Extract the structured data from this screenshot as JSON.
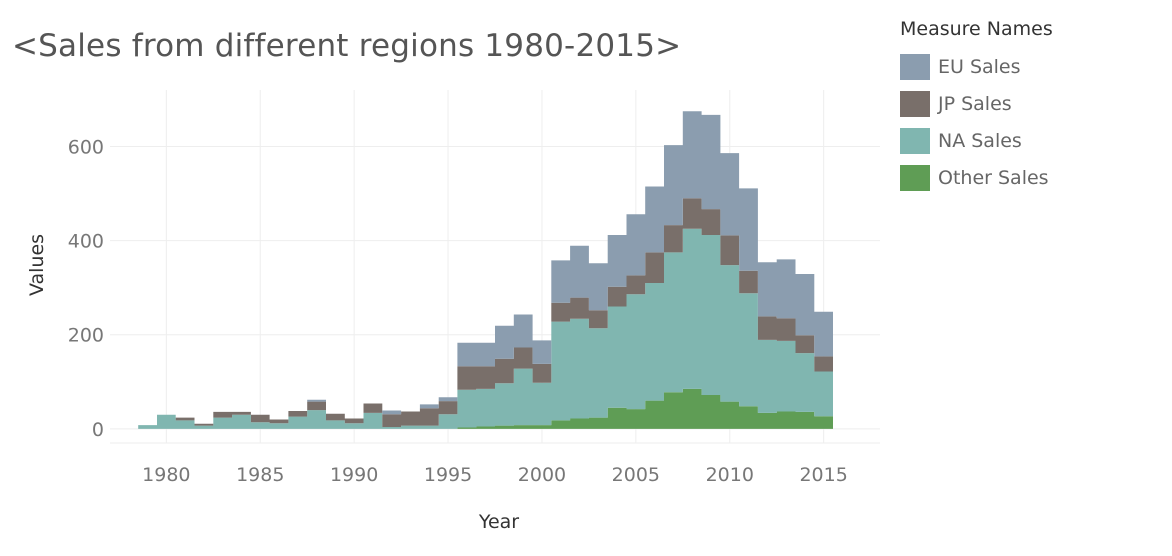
{
  "chart_data": {
    "type": "area",
    "stacked": true,
    "step": true,
    "title": "<Sales from different regions 1980-2015>",
    "xlabel": "Year",
    "ylabel": "Values",
    "xlim": [
      1977,
      2018
    ],
    "ylim": [
      -30,
      720
    ],
    "x_ticks": [
      1980,
      1985,
      1990,
      1995,
      2000,
      2005,
      2010,
      2015
    ],
    "y_ticks": [
      0,
      200,
      400,
      600
    ],
    "grid": true,
    "legend_title": "Measure Names",
    "legend_position": "top-right",
    "x": [
      1979,
      1980,
      1981,
      1982,
      1983,
      1984,
      1985,
      1986,
      1987,
      1988,
      1989,
      1990,
      1991,
      1992,
      1993,
      1994,
      1995,
      1996,
      1997,
      1998,
      1999,
      2000,
      2001,
      2002,
      2003,
      2004,
      2005,
      2006,
      2007,
      2008,
      2009,
      2010,
      2011,
      2012,
      2013,
      2014,
      2015
    ],
    "series": [
      {
        "name": "Other Sales",
        "color": "#5f9d55",
        "values": [
          0,
          0,
          0,
          0,
          0,
          0,
          0,
          0,
          0,
          0,
          0,
          0,
          0,
          0,
          0,
          0,
          0,
          3,
          5,
          7,
          8,
          8,
          18,
          22,
          24,
          45,
          42,
          60,
          78,
          85,
          72,
          58,
          48,
          34,
          37,
          36,
          27
        ]
      },
      {
        "name": "NA Sales",
        "color": "#80b6b0",
        "values": [
          8,
          30,
          18,
          7,
          24,
          30,
          14,
          12,
          26,
          40,
          18,
          12,
          34,
          4,
          7,
          7,
          31,
          80,
          80,
          90,
          120,
          90,
          210,
          212,
          190,
          215,
          244,
          250,
          297,
          340,
          340,
          290,
          240,
          155,
          150,
          125,
          95
        ]
      },
      {
        "name": "JP Sales",
        "color": "#796f6a",
        "values": [
          0,
          0,
          6,
          4,
          12,
          6,
          16,
          8,
          12,
          18,
          14,
          10,
          20,
          27,
          30,
          37,
          28,
          50,
          48,
          52,
          45,
          40,
          40,
          45,
          38,
          42,
          40,
          65,
          58,
          65,
          55,
          63,
          48,
          50,
          48,
          38,
          32
        ]
      },
      {
        "name": "EU Sales",
        "color": "#8b9daf",
        "values": [
          0,
          0,
          0,
          0,
          0,
          0,
          0,
          0,
          0,
          4,
          0,
          0,
          0,
          8,
          0,
          8,
          8,
          50,
          50,
          70,
          70,
          50,
          90,
          110,
          100,
          110,
          130,
          140,
          170,
          185,
          200,
          175,
          175,
          115,
          125,
          130,
          95
        ]
      }
    ]
  }
}
